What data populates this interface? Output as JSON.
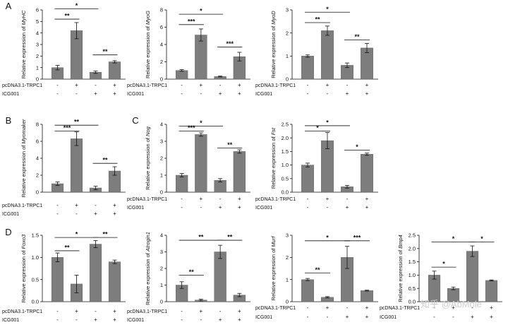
{
  "conditions": [
    "pcDNA3.1-TRPC1",
    "ICG001"
  ],
  "watermark": "知乎 @AbMole",
  "chart_data": [
    {
      "id": "myhc",
      "type": "bar",
      "panel_letter": "A",
      "gene": "MyHC",
      "ylabel_prefix": "Relative expression of ",
      "ylim": [
        0,
        6
      ],
      "ticks": [
        0,
        1,
        2,
        3,
        4,
        5,
        6
      ],
      "values": [
        1.0,
        4.2,
        0.6,
        1.5
      ],
      "errors": [
        0.2,
        0.7,
        0.1,
        0.1
      ],
      "signs": [
        [
          "-",
          "+",
          "-",
          "+"
        ],
        [
          "-",
          "-",
          "+",
          "+"
        ]
      ],
      "significance": [
        {
          "from": 0,
          "to": 1,
          "label": "**",
          "y": 5.2
        },
        {
          "from": 2,
          "to": 3,
          "label": "**",
          "y": 2.1
        },
        {
          "from": 0,
          "to": 2,
          "label": "*",
          "y": 6.1
        }
      ]
    },
    {
      "id": "myog",
      "type": "bar",
      "panel_letter": "",
      "gene": "MyoG",
      "ylabel_prefix": "Relative expression of ",
      "ylim": [
        0,
        8
      ],
      "ticks": [
        0,
        2,
        4,
        6,
        8
      ],
      "values": [
        1.0,
        5.1,
        0.3,
        2.6
      ],
      "errors": [
        0.1,
        0.7,
        0.05,
        0.5
      ],
      "signs": [
        [
          "-",
          "+",
          "-",
          "+"
        ],
        [
          "-",
          "-",
          "+",
          "+"
        ]
      ],
      "significance": [
        {
          "from": 0,
          "to": 1,
          "label": "***",
          "y": 6.3
        },
        {
          "from": 2,
          "to": 3,
          "label": "***",
          "y": 3.7
        },
        {
          "from": 0,
          "to": 2,
          "label": "*",
          "y": 7.5
        }
      ]
    },
    {
      "id": "myod",
      "type": "bar",
      "panel_letter": "",
      "gene": "MyoD",
      "ylabel_prefix": "Relative expression of ",
      "ylim": [
        0,
        3
      ],
      "ticks": [
        0,
        1,
        2,
        3
      ],
      "values": [
        1.0,
        2.1,
        0.6,
        1.35
      ],
      "errors": [
        0.05,
        0.2,
        0.1,
        0.2
      ],
      "signs": [
        [
          "-",
          "+",
          "-",
          "+"
        ],
        [
          "-",
          "-",
          "+",
          "+"
        ]
      ],
      "significance": [
        {
          "from": 0,
          "to": 1,
          "label": "**",
          "y": 2.45
        },
        {
          "from": 2,
          "to": 3,
          "label": "**",
          "y": 1.7
        },
        {
          "from": 0,
          "to": 2,
          "label": "*",
          "y": 2.9
        }
      ]
    },
    {
      "id": "myomaker",
      "type": "bar",
      "panel_letter": "B",
      "gene": "Myomaker",
      "ylabel_prefix": "Relative expression of ",
      "ylim": [
        0,
        8
      ],
      "ticks": [
        0,
        2,
        4,
        6,
        8
      ],
      "values": [
        1.0,
        6.3,
        0.5,
        2.5
      ],
      "errors": [
        0.2,
        0.8,
        0.2,
        0.5
      ],
      "signs": [
        [
          "-",
          "+",
          "-",
          "+"
        ],
        [
          "-",
          "-",
          "+",
          "+"
        ]
      ],
      "significance": [
        {
          "from": 0,
          "to": 1,
          "label": "***",
          "y": 7.2
        },
        {
          "from": 2,
          "to": 3,
          "label": "**",
          "y": 3.4
        },
        {
          "from": 0,
          "to": 2,
          "label": "**",
          "y": 7.9
        }
      ]
    },
    {
      "id": "nog",
      "type": "bar",
      "panel_letter": "C",
      "gene": "Nog",
      "ylabel_prefix": "Relative expression of ",
      "ylim": [
        0,
        4
      ],
      "ticks": [
        0,
        1,
        2,
        3,
        4
      ],
      "values": [
        1.0,
        3.4,
        0.7,
        2.4
      ],
      "errors": [
        0.1,
        0.1,
        0.1,
        0.1
      ],
      "signs": [
        [
          "-",
          "+",
          "-",
          "+"
        ],
        [
          "-",
          "-",
          "+",
          "+"
        ]
      ],
      "significance": [
        {
          "from": 0,
          "to": 1,
          "label": "***",
          "y": 3.6
        },
        {
          "from": 2,
          "to": 3,
          "label": "**",
          "y": 2.6
        },
        {
          "from": 0,
          "to": 2,
          "label": "*",
          "y": 3.9
        }
      ]
    },
    {
      "id": "fst",
      "type": "bar",
      "panel_letter": "",
      "gene": "Fst",
      "ylabel_prefix": "Relative expression of ",
      "ylim": [
        0,
        2.5
      ],
      "ticks": [
        0.0,
        0.5,
        1.0,
        1.5,
        2.0,
        2.5
      ],
      "values": [
        1.0,
        1.9,
        0.2,
        1.4
      ],
      "errors": [
        0.07,
        0.3,
        0.05,
        0.04
      ],
      "signs": [
        [
          "-",
          "+",
          "-",
          "+"
        ],
        [
          "-",
          "-",
          "+",
          "+"
        ]
      ],
      "significance": [
        {
          "from": 0,
          "to": 1,
          "label": "*",
          "y": 2.25
        },
        {
          "from": 2,
          "to": 3,
          "label": "*",
          "y": 1.55
        },
        {
          "from": 0,
          "to": 2,
          "label": "*",
          "y": 2.45
        }
      ]
    },
    {
      "id": "foxo3",
      "type": "bar",
      "panel_letter": "D",
      "gene": "Foxo3",
      "ylabel_prefix": "Relative expression of ",
      "ylim": [
        0,
        1.5
      ],
      "ticks": [
        0.0,
        0.5,
        1.0,
        1.5
      ],
      "values": [
        1.0,
        0.4,
        1.3,
        0.9
      ],
      "errors": [
        0.1,
        0.2,
        0.08,
        0.04
      ],
      "signs": [
        [
          "-",
          "+",
          "-",
          "+"
        ],
        [
          "-",
          "-",
          "+",
          "+"
        ]
      ],
      "significance": [
        {
          "from": 0,
          "to": 1,
          "label": "**",
          "y": 1.15
        },
        {
          "from": 2,
          "to": 3,
          "label": "**",
          "y": 1.45
        },
        {
          "from": 0,
          "to": 2,
          "label": "*",
          "y": 1.45
        }
      ]
    },
    {
      "id": "atrogin1",
      "type": "bar",
      "panel_letter": "",
      "gene": "Atrogin1",
      "ylabel_prefix": "Relative expression of ",
      "ylim": [
        0,
        4
      ],
      "ticks": [
        0,
        1,
        2,
        3,
        4
      ],
      "values": [
        1.0,
        0.1,
        3.0,
        0.4
      ],
      "errors": [
        0.2,
        0.05,
        0.4,
        0.1
      ],
      "signs": [
        [
          "-",
          "+",
          "-",
          "+"
        ],
        [
          "-",
          "-",
          "+",
          "+"
        ]
      ],
      "significance": [
        {
          "from": 0,
          "to": 1,
          "label": "**",
          "y": 1.6
        },
        {
          "from": 2,
          "to": 3,
          "label": "**",
          "y": 3.7
        },
        {
          "from": 0,
          "to": 2,
          "label": "**",
          "y": 3.7
        }
      ]
    },
    {
      "id": "murf",
      "type": "bar",
      "panel_letter": "",
      "gene": "Murf",
      "ylabel_prefix": "Relative expression of ",
      "ylim": [
        0,
        3
      ],
      "ticks": [
        0,
        1,
        2,
        3
      ],
      "values": [
        1.0,
        0.2,
        2.0,
        0.5
      ],
      "errors": [
        0.05,
        0.03,
        0.5,
        0.02
      ],
      "signs": [
        [
          "-",
          "+",
          "-",
          "+"
        ],
        [
          "-",
          "-",
          "+",
          "+"
        ]
      ],
      "significance": [
        {
          "from": 0,
          "to": 1,
          "label": "**",
          "y": 1.3
        },
        {
          "from": 2,
          "to": 3,
          "label": "***",
          "y": 2.75
        },
        {
          "from": 0,
          "to": 2,
          "label": "*",
          "y": 2.75
        }
      ]
    },
    {
      "id": "bmp4",
      "type": "bar",
      "panel_letter": "",
      "gene": "Bmp4",
      "ylabel_prefix": "Relative expression of ",
      "ylim": [
        0,
        2.5
      ],
      "ticks": [
        0.0,
        0.5,
        1.0,
        1.5,
        2.0,
        2.5
      ],
      "values": [
        1.0,
        0.5,
        1.9,
        0.8
      ],
      "errors": [
        0.15,
        0.05,
        0.2,
        0.02
      ],
      "signs": [
        [
          "-",
          "+",
          "-",
          "+"
        ],
        [
          "-",
          "-",
          "+",
          "+"
        ]
      ],
      "significance": [
        {
          "from": 0,
          "to": 1,
          "label": "*",
          "y": 1.3
        },
        {
          "from": 2,
          "to": 3,
          "label": "*",
          "y": 2.25
        },
        {
          "from": 0,
          "to": 2,
          "label": "*",
          "y": 2.25
        }
      ]
    }
  ]
}
